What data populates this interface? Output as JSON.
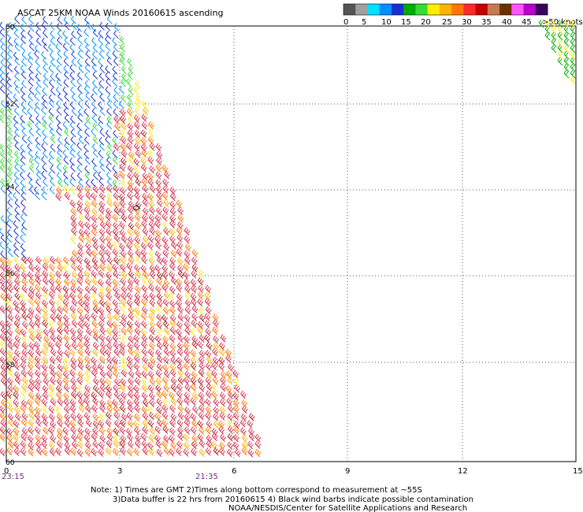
{
  "title": "ASCAT 25KM NOAA Winds 20160615 ascending",
  "legend": {
    "colors": [
      "#555555",
      "#a0a0a0",
      "#00e0ff",
      "#0090ff",
      "#1a2fd0",
      "#00aa00",
      "#33dd33",
      "#ffee00",
      "#ffb300",
      "#ff7700",
      "#ff2a2a",
      "#c40000",
      "#c77a50",
      "#6b2f00",
      "#ff55ff",
      "#bb00cc",
      "#3a0060"
    ],
    "tick_labels": [
      "0",
      "5",
      "10",
      "15",
      "20",
      "25",
      "30",
      "35",
      "40",
      "45",
      ">50 knots"
    ]
  },
  "lat_labels": [
    "50",
    "52",
    "54",
    "56",
    "58",
    "60"
  ],
  "lon_labels": [
    "0",
    "3",
    "6",
    "9",
    "12",
    "15"
  ],
  "times": [
    "23:15",
    "21:35"
  ],
  "notes": [
    "Note: 1) Times are GMT 2)Times along bottom correspond to measurement at ~55S",
    "3)Data buffer is 22 hrs from 20160615 4) Black wind barbs indicate possible contamination",
    "NOAA/NESDIS/Center for Satellite Applications and Research"
  ]
}
